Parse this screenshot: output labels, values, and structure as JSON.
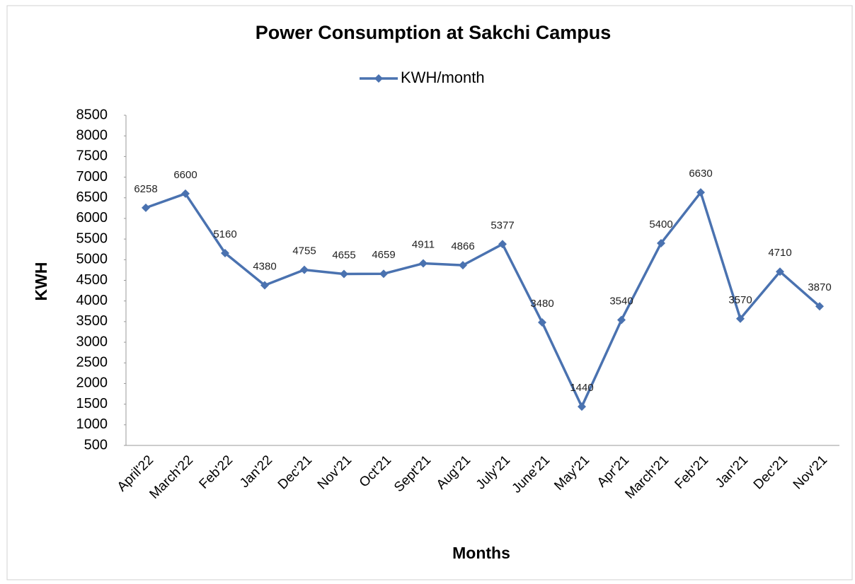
{
  "chart_data": {
    "type": "line",
    "title": "Power Consumption at Sakchi Campus",
    "x_label": "Months",
    "y_label": "KWH",
    "categories": [
      "April'22",
      "March'22",
      "Feb'22",
      "Jan'22",
      "Dec'21",
      "Nov'21",
      "Oct'21",
      "Sept'21",
      "Aug'21",
      "July'21",
      "June'21",
      "May'21",
      "Apr'21",
      "March'21",
      "Feb'21",
      "Jan'21",
      "Dec'21",
      "Nov'21"
    ],
    "series": [
      {
        "name": "KWH/month",
        "color": "#4a72b0",
        "values": [
          6258,
          6600,
          5160,
          4380,
          4755,
          4655,
          4659,
          4911,
          4866,
          5377,
          3480,
          1440,
          3540,
          5400,
          6630,
          3570,
          4710,
          3870
        ]
      }
    ],
    "ylim": [
      500,
      8500
    ],
    "yticks": [
      500,
      1000,
      1500,
      2000,
      2500,
      3000,
      3500,
      4000,
      4500,
      5000,
      5500,
      6000,
      6500,
      7000,
      7500,
      8000,
      8500
    ],
    "legend": "top",
    "grid": false
  }
}
